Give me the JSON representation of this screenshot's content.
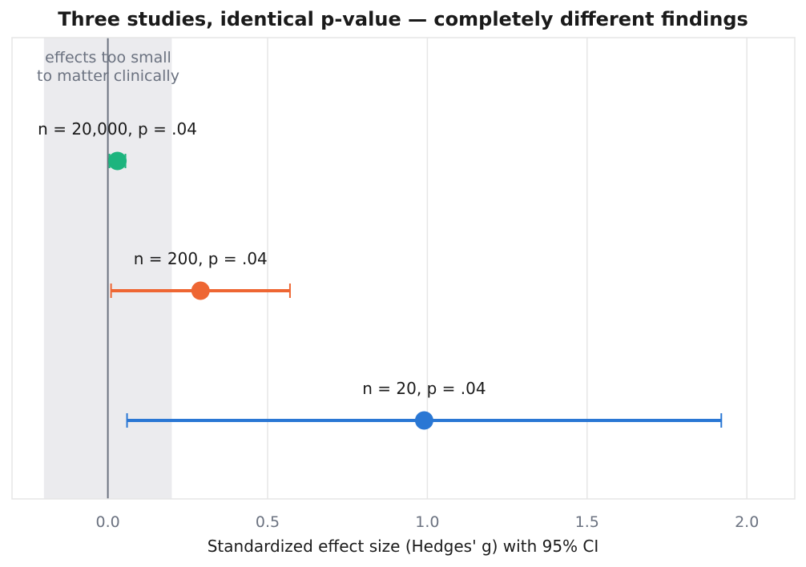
{
  "chart_data": {
    "type": "scatter",
    "title": "Three studies, identical p-value — completely different findings",
    "xlabel": "Standardized effect size (Hedges' g) with 95% CI",
    "ylabel": "",
    "xlim": [
      -0.3,
      2.15
    ],
    "xticks": [
      0.0,
      0.5,
      1.0,
      1.5,
      2.0
    ],
    "xtick_labels": [
      "0.0",
      "0.5",
      "1.0",
      "1.5",
      "2.0"
    ],
    "grid": "vertical",
    "reference_line": 0.0,
    "shaded_region": {
      "from": -0.2,
      "to": 0.2,
      "label_lines": [
        "effects too small",
        "to matter clinically"
      ],
      "color": "#ebebee"
    },
    "series": [
      {
        "label": "n = 20,000, p = .04",
        "estimate": 0.03,
        "ci_low": 0.005,
        "ci_high": 0.055,
        "color": "#1db47e"
      },
      {
        "label": "n = 200, p = .04",
        "estimate": 0.29,
        "ci_low": 0.01,
        "ci_high": 0.57,
        "color": "#ee6633"
      },
      {
        "label": "n = 20, p = .04",
        "estimate": 0.99,
        "ci_low": 0.06,
        "ci_high": 1.92,
        "color": "#2a77d4"
      }
    ]
  }
}
